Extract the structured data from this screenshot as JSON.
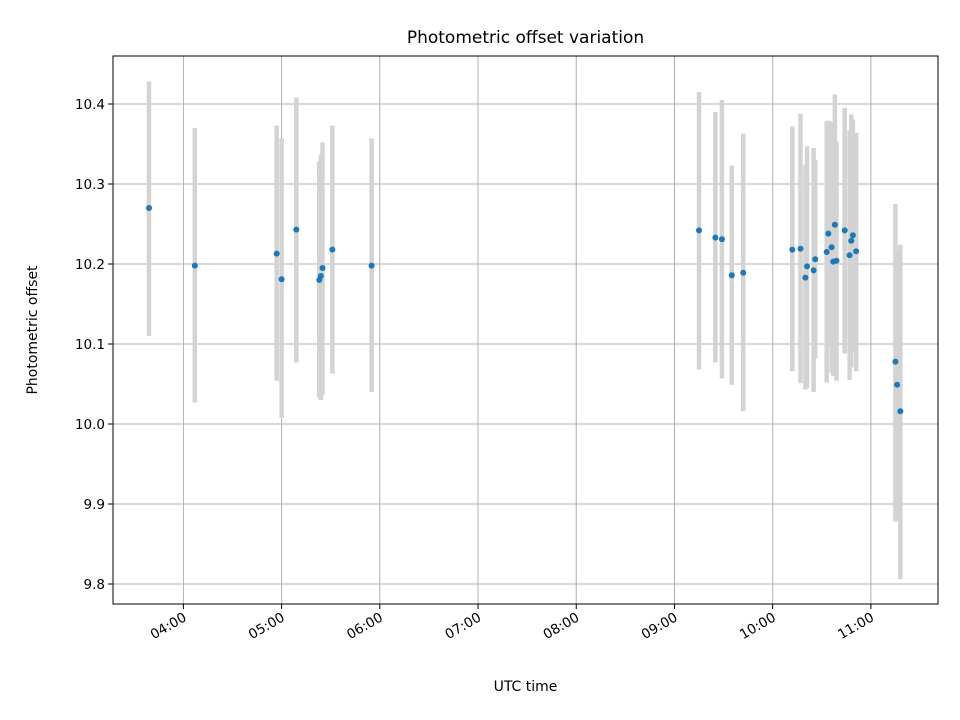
{
  "chart_data": {
    "type": "scatter",
    "title": "Photometric offset variation",
    "xlabel": "UTC time",
    "ylabel": "Photometric offset",
    "xlim": [
      "03:17",
      "11:41"
    ],
    "ylim": [
      9.775,
      10.46
    ],
    "grid": true,
    "x_ticks": [
      "04:00",
      "05:00",
      "06:00",
      "07:00",
      "08:00",
      "09:00",
      "10:00",
      "11:00"
    ],
    "y_ticks": [
      "9.8",
      "9.9",
      "10.0",
      "10.1",
      "10.2",
      "10.3",
      "10.4"
    ],
    "point_color": "#1f77b4",
    "errorbar_color": "#d3d3d3",
    "series": [
      {
        "points": [
          {
            "t": "03:39",
            "y": 10.27,
            "ylo": 10.11,
            "yhi": 10.428
          },
          {
            "t": "04:07",
            "y": 10.198,
            "ylo": 10.027,
            "yhi": 10.37
          },
          {
            "t": "04:57",
            "y": 10.213,
            "ylo": 10.054,
            "yhi": 10.373
          },
          {
            "t": "05:00",
            "y": 10.181,
            "ylo": 10.008,
            "yhi": 10.357
          },
          {
            "t": "05:09",
            "y": 10.243,
            "ylo": 10.077,
            "yhi": 10.408
          },
          {
            "t": "05:23",
            "y": 10.18,
            "ylo": 10.033,
            "yhi": 10.328
          },
          {
            "t": "05:24",
            "y": 10.185,
            "ylo": 10.03,
            "yhi": 10.337
          },
          {
            "t": "05:25",
            "y": 10.195,
            "ylo": 10.037,
            "yhi": 10.352
          },
          {
            "t": "05:31",
            "y": 10.218,
            "ylo": 10.063,
            "yhi": 10.373
          },
          {
            "t": "05:55",
            "y": 10.198,
            "ylo": 10.04,
            "yhi": 10.357
          },
          {
            "t": "09:15",
            "y": 10.242,
            "ylo": 10.068,
            "yhi": 10.415
          },
          {
            "t": "09:25",
            "y": 10.233,
            "ylo": 10.077,
            "yhi": 10.39
          },
          {
            "t": "09:29",
            "y": 10.231,
            "ylo": 10.057,
            "yhi": 10.405
          },
          {
            "t": "09:35",
            "y": 10.186,
            "ylo": 10.049,
            "yhi": 10.323
          },
          {
            "t": "09:42",
            "y": 10.189,
            "ylo": 10.016,
            "yhi": 10.363
          },
          {
            "t": "10:12",
            "y": 10.218,
            "ylo": 10.066,
            "yhi": 10.372
          },
          {
            "t": "10:17",
            "y": 10.219,
            "ylo": 10.051,
            "yhi": 10.388
          },
          {
            "t": "10:20",
            "y": 10.183,
            "ylo": 10.043,
            "yhi": 10.324
          },
          {
            "t": "10:21",
            "y": 10.197,
            "ylo": 10.045,
            "yhi": 10.347
          },
          {
            "t": "10:25",
            "y": 10.192,
            "ylo": 10.04,
            "yhi": 10.345
          },
          {
            "t": "10:26",
            "y": 10.206,
            "ylo": 10.082,
            "yhi": 10.33
          },
          {
            "t": "10:33",
            "y": 10.215,
            "ylo": 10.052,
            "yhi": 10.378
          },
          {
            "t": "10:34",
            "y": 10.238,
            "ylo": 10.097,
            "yhi": 10.379
          },
          {
            "t": "10:36",
            "y": 10.221,
            "ylo": 10.064,
            "yhi": 10.378
          },
          {
            "t": "10:37",
            "y": 10.203,
            "ylo": 10.06,
            "yhi": 10.346
          },
          {
            "t": "10:38",
            "y": 10.249,
            "ylo": 10.086,
            "yhi": 10.412
          },
          {
            "t": "10:39",
            "y": 10.204,
            "ylo": 10.054,
            "yhi": 10.353
          },
          {
            "t": "10:44",
            "y": 10.242,
            "ylo": 10.088,
            "yhi": 10.395
          },
          {
            "t": "10:47",
            "y": 10.211,
            "ylo": 10.055,
            "yhi": 10.367
          },
          {
            "t": "10:48",
            "y": 10.229,
            "ylo": 10.071,
            "yhi": 10.387
          },
          {
            "t": "10:49",
            "y": 10.236,
            "ylo": 10.09,
            "yhi": 10.381
          },
          {
            "t": "10:51",
            "y": 10.216,
            "ylo": 10.066,
            "yhi": 10.364
          },
          {
            "t": "11:15",
            "y": 10.078,
            "ylo": 9.878,
            "yhi": 10.275
          },
          {
            "t": "11:16",
            "y": 10.049,
            "ylo": 9.88,
            "yhi": 10.218
          },
          {
            "t": "11:18",
            "y": 10.016,
            "ylo": 9.806,
            "yhi": 10.224
          }
        ]
      }
    ]
  }
}
